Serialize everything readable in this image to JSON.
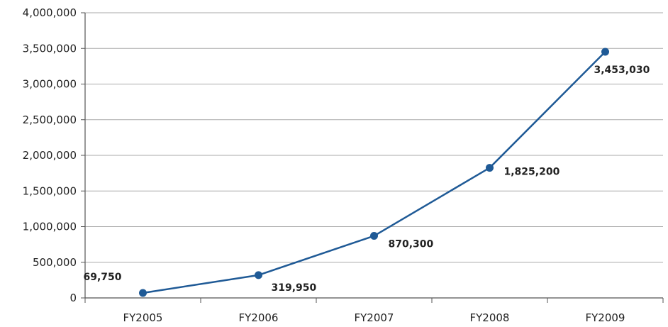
{
  "chart_data": {
    "type": "line",
    "categories": [
      "FY2005",
      "FY2006",
      "FY2007",
      "FY2008",
      "FY2009"
    ],
    "series": [
      {
        "values": [
          69750,
          319950,
          870300,
          1825200,
          3453030
        ]
      }
    ],
    "data_labels": [
      "69,750",
      "319,950",
      "870,300",
      "1,825,200",
      "3,453,030"
    ],
    "y_ticks": [
      0,
      500000,
      1000000,
      1500000,
      2000000,
      2500000,
      3000000,
      3500000,
      4000000
    ],
    "y_tick_labels": [
      "0",
      "500,000",
      "1,000,000",
      "1,500,000",
      "2,000,000",
      "2,500,000",
      "3,000,000",
      "3,500,000",
      "4,000,000"
    ],
    "ylim": [
      0,
      4000000
    ],
    "title": "",
    "xlabel": "",
    "ylabel": "",
    "grid": "horizontal",
    "legend": "none",
    "colors": {
      "line": "#1f5a96",
      "grid": "#aaaaaa",
      "axis": "#555555"
    }
  }
}
